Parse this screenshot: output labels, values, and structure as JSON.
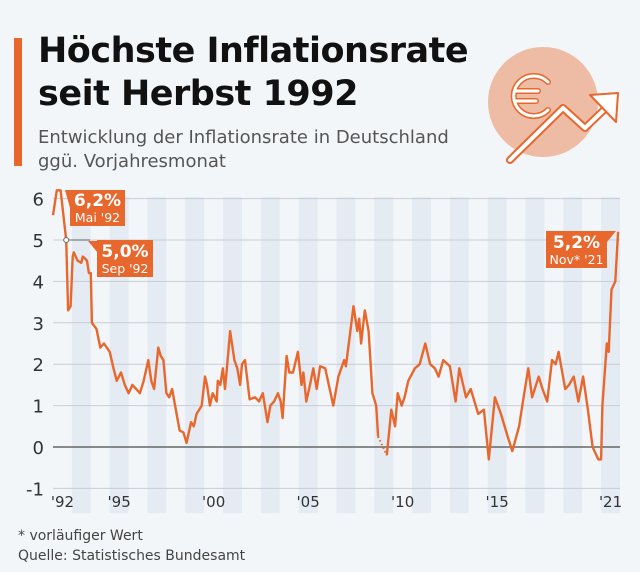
{
  "header": {
    "title_line1": "Höchste Inflationsrate",
    "title_line2": "seit Herbst 1992",
    "subtitle_line1": "Entwicklung der Inflationsrate in Deutschland",
    "subtitle_line2": "ggü. Vorjahresmonat",
    "icon": "euro-rising-arrow-icon"
  },
  "footer": {
    "footnote": "* vorläufiger Wert",
    "source": "Quelle: Statistisches Bundesamt"
  },
  "colors": {
    "accent": "#e8672d",
    "background": "#f3f6f9",
    "band": "#e5ebf3",
    "grid": "#c8cdd5",
    "zero_line": "#666666",
    "icon_circle": "#eebba4"
  },
  "chart_data": {
    "type": "line",
    "title": "",
    "xlabel": "",
    "ylabel": "",
    "ylim": [
      -1,
      6
    ],
    "xlim": [
      1992,
      2022
    ],
    "y_ticks": [
      "6",
      "5",
      "4",
      "3",
      "2",
      "1",
      "0",
      "-1"
    ],
    "x_ticks": [
      {
        "year": 1992,
        "label": "'92"
      },
      {
        "year": 1995,
        "label": "'95"
      },
      {
        "year": 2000,
        "label": "'00"
      },
      {
        "year": 2005,
        "label": "'05"
      },
      {
        "year": 2010,
        "label": "'10"
      },
      {
        "year": 2015,
        "label": "'15"
      },
      {
        "year": 2021,
        "label": "'21"
      }
    ],
    "shaded_years": "odd years",
    "grid": true,
    "dotted_segment": [
      2009.2,
      2009.66
    ],
    "points": [
      [
        1992.0,
        5.6
      ],
      [
        1992.2,
        6.2
      ],
      [
        1992.4,
        6.2
      ],
      [
        1992.7,
        5.0
      ],
      [
        1992.8,
        3.3
      ],
      [
        1992.93,
        3.4
      ],
      [
        1993.04,
        4.6
      ],
      [
        1993.1,
        4.7
      ],
      [
        1993.3,
        4.5
      ],
      [
        1993.5,
        4.45
      ],
      [
        1993.57,
        4.6
      ],
      [
        1993.7,
        4.55
      ],
      [
        1993.8,
        4.5
      ],
      [
        1993.9,
        4.2
      ],
      [
        1994.0,
        4.2
      ],
      [
        1994.06,
        3.0
      ],
      [
        1994.3,
        2.85
      ],
      [
        1994.5,
        2.4
      ],
      [
        1994.7,
        2.5
      ],
      [
        1995.0,
        2.3
      ],
      [
        1995.2,
        1.9
      ],
      [
        1995.37,
        1.6
      ],
      [
        1995.6,
        1.8
      ],
      [
        1995.8,
        1.5
      ],
      [
        1996.0,
        1.3
      ],
      [
        1996.2,
        1.5
      ],
      [
        1996.4,
        1.4
      ],
      [
        1996.6,
        1.3
      ],
      [
        1996.8,
        1.6
      ],
      [
        1997.04,
        2.1
      ],
      [
        1997.2,
        1.6
      ],
      [
        1997.35,
        1.4
      ],
      [
        1997.57,
        2.4
      ],
      [
        1997.7,
        2.2
      ],
      [
        1997.84,
        2.1
      ],
      [
        1998.0,
        1.3
      ],
      [
        1998.15,
        1.2
      ],
      [
        1998.3,
        1.4
      ],
      [
        1998.54,
        0.8
      ],
      [
        1998.7,
        0.4
      ],
      [
        1998.9,
        0.35
      ],
      [
        1999.07,
        0.1
      ],
      [
        1999.3,
        0.6
      ],
      [
        1999.45,
        0.5
      ],
      [
        1999.6,
        0.8
      ],
      [
        1999.87,
        1.0
      ],
      [
        2000.04,
        1.7
      ],
      [
        2000.15,
        1.5
      ],
      [
        2000.3,
        1.0
      ],
      [
        2000.45,
        1.3
      ],
      [
        2000.66,
        1.1
      ],
      [
        2000.72,
        1.6
      ],
      [
        2000.85,
        1.5
      ],
      [
        2000.99,
        1.9
      ],
      [
        2001.1,
        1.4
      ],
      [
        2001.2,
        1.9
      ],
      [
        2001.37,
        2.8
      ],
      [
        2001.6,
        2.1
      ],
      [
        2001.75,
        1.9
      ],
      [
        2001.9,
        1.5
      ],
      [
        2002.0,
        2.0
      ],
      [
        2002.16,
        2.1
      ],
      [
        2002.4,
        1.15
      ],
      [
        2002.7,
        1.2
      ],
      [
        2002.9,
        1.1
      ],
      [
        2003.1,
        1.3
      ],
      [
        2003.35,
        0.6
      ],
      [
        2003.5,
        1.0
      ],
      [
        2003.7,
        1.1
      ],
      [
        2003.9,
        1.3
      ],
      [
        2004.05,
        1.1
      ],
      [
        2004.15,
        0.7
      ],
      [
        2004.36,
        2.2
      ],
      [
        2004.5,
        1.8
      ],
      [
        2004.7,
        1.8
      ],
      [
        2004.96,
        2.3
      ],
      [
        2005.15,
        1.5
      ],
      [
        2005.25,
        1.8
      ],
      [
        2005.4,
        1.1
      ],
      [
        2005.6,
        1.5
      ],
      [
        2005.77,
        1.9
      ],
      [
        2005.95,
        1.4
      ],
      [
        2006.13,
        1.95
      ],
      [
        2006.4,
        1.9
      ],
      [
        2006.83,
        1.0
      ],
      [
        2007.1,
        1.7
      ],
      [
        2007.4,
        2.1
      ],
      [
        2007.5,
        1.95
      ],
      [
        2007.9,
        3.4
      ],
      [
        2008.1,
        2.8
      ],
      [
        2008.2,
        3.1
      ],
      [
        2008.3,
        2.5
      ],
      [
        2008.5,
        3.3
      ],
      [
        2008.7,
        2.8
      ],
      [
        2008.9,
        1.3
      ],
      [
        2009.1,
        1.0
      ],
      [
        2009.2,
        0.25
      ],
      [
        2009.66,
        -0.2
      ],
      [
        2009.9,
        0.9
      ],
      [
        2010.1,
        0.5
      ],
      [
        2010.24,
        1.3
      ],
      [
        2010.45,
        1.0
      ],
      [
        2010.6,
        1.2
      ],
      [
        2010.8,
        1.6
      ],
      [
        2011.15,
        1.9
      ],
      [
        2011.4,
        2.0
      ],
      [
        2011.7,
        2.5
      ],
      [
        2011.95,
        2.0
      ],
      [
        2012.2,
        1.9
      ],
      [
        2012.4,
        1.7
      ],
      [
        2012.65,
        2.1
      ],
      [
        2013.0,
        1.95
      ],
      [
        2013.3,
        1.1
      ],
      [
        2013.5,
        1.9
      ],
      [
        2013.85,
        1.2
      ],
      [
        2014.1,
        1.4
      ],
      [
        2014.5,
        0.8
      ],
      [
        2014.8,
        0.9
      ],
      [
        2015.06,
        -0.3
      ],
      [
        2015.38,
        1.2
      ],
      [
        2015.7,
        0.8
      ],
      [
        2016.06,
        0.25
      ],
      [
        2016.3,
        -0.1
      ],
      [
        2016.66,
        0.5
      ],
      [
        2016.9,
        1.2
      ],
      [
        2017.15,
        1.9
      ],
      [
        2017.35,
        1.2
      ],
      [
        2017.7,
        1.7
      ],
      [
        2017.9,
        1.4
      ],
      [
        2018.15,
        1.1
      ],
      [
        2018.4,
        2.1
      ],
      [
        2018.6,
        2.0
      ],
      [
        2018.75,
        2.3
      ],
      [
        2019.1,
        1.4
      ],
      [
        2019.3,
        1.5
      ],
      [
        2019.55,
        1.7
      ],
      [
        2019.8,
        1.1
      ],
      [
        2020.05,
        1.7
      ],
      [
        2020.3,
        0.9
      ],
      [
        2020.55,
        0.0
      ],
      [
        2020.85,
        -0.3
      ],
      [
        2021.0,
        -0.3
      ],
      [
        2021.07,
        1.0
      ],
      [
        2021.3,
        2.5
      ],
      [
        2021.4,
        2.3
      ],
      [
        2021.55,
        3.8
      ],
      [
        2021.75,
        4.0
      ],
      [
        2021.9,
        5.2
      ]
    ],
    "annotations": [
      {
        "value": "6,2%",
        "date": "Mai '92"
      },
      {
        "value": "5,0%",
        "date": "Sep '92"
      },
      {
        "value": "5,2%",
        "date": "Nov* '21"
      }
    ]
  }
}
